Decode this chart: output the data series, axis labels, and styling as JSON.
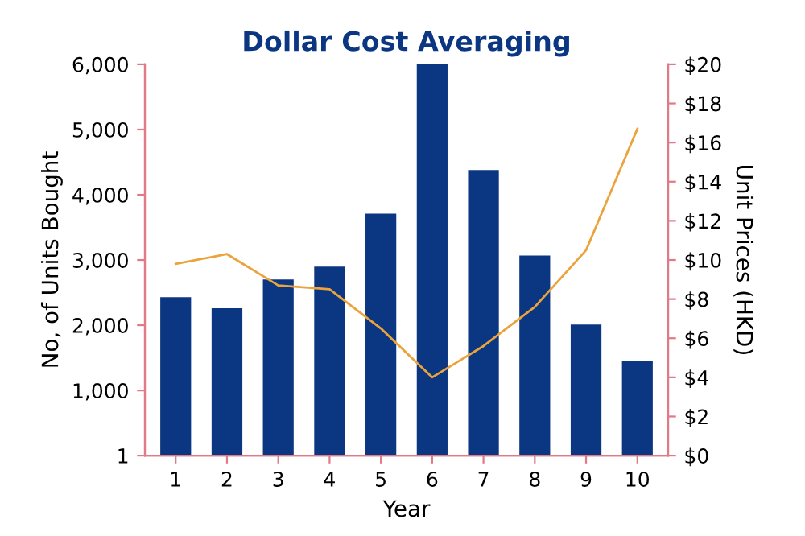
{
  "chart_data": {
    "type": "bar",
    "title": "Dollar Cost Averaging",
    "xlabel": "Year",
    "ylabel": "No, of Units Bought",
    "y2label": "Unit Prices (HKD)",
    "categories": [
      "1",
      "2",
      "3",
      "4",
      "5",
      "6",
      "7",
      "8",
      "9",
      "10"
    ],
    "series": [
      {
        "color": "#0b3682",
        "values": [
          2430,
          2260,
          2700,
          2900,
          3710,
          6000,
          4380,
          3070,
          2010,
          1450
        ]
      },
      {
        "type": "line",
        "axis": "y2",
        "color": "#eba33c",
        "values": [
          9.8,
          10.3,
          8.7,
          8.5,
          6.5,
          4.0,
          5.6,
          7.6,
          10.5,
          16.7
        ]
      }
    ],
    "ylim": [
      1,
      6000
    ],
    "yticks": [
      1,
      {
        "value": 1000,
        "label": "1,000"
      },
      {
        "value": 2000,
        "label": "2,000"
      },
      {
        "value": 3000,
        "label": "3,000"
      },
      {
        "value": 4000,
        "label": "4,000"
      },
      {
        "value": 5000,
        "label": "5,000"
      },
      {
        "value": 6000,
        "label": "6,000"
      }
    ],
    "y2lim": [
      0,
      20
    ],
    "y2ticks": [
      {
        "value": 0,
        "label": "$0"
      },
      {
        "value": 2,
        "label": "$2"
      },
      {
        "value": 4,
        "label": "$4"
      },
      {
        "value": 6,
        "label": "$6"
      },
      {
        "value": 8,
        "label": "$8"
      },
      {
        "value": 10,
        "label": "$10"
      },
      {
        "value": 12,
        "label": "$12"
      },
      {
        "value": 14,
        "label": "$14"
      },
      {
        "value": 16,
        "label": "$16"
      },
      {
        "value": 18,
        "label": "$18"
      },
      {
        "value": 20,
        "label": "$20"
      }
    ],
    "grid": false,
    "legend": false
  }
}
